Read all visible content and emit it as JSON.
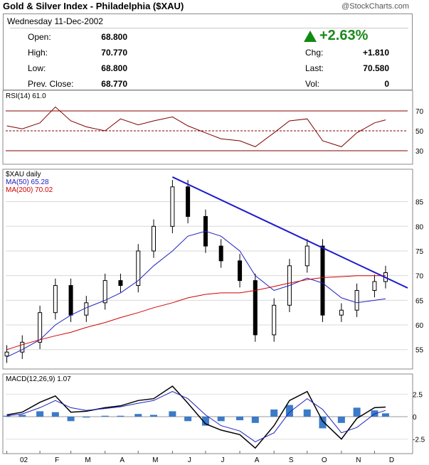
{
  "header": {
    "title": "Gold & Silver Index - Philadelphia ($XAU)",
    "brand": "@StockCharts.com",
    "date": "Wednesday  11-Dec-2002",
    "open_label": "Open:",
    "open": "68.800",
    "high_label": "High:",
    "high": "70.770",
    "low_label": "Low:",
    "low": "68.800",
    "prev_label": "Prev. Close:",
    "prev": "68.770",
    "pct": "+2.63%",
    "chg_label": "Chg:",
    "chg": "+1.810",
    "last_label": "Last:",
    "last": "70.580",
    "vol_label": "Vol:",
    "vol": "0"
  },
  "colors": {
    "up": "#118a11",
    "price": "#000000",
    "ma50": "#2020c0",
    "ma200": "#d00000",
    "trendline": "#1a1ad0",
    "histogram": "#3a7ac8",
    "rsi": "#800000"
  },
  "chart_data": [
    {
      "type": "line",
      "panel": "rsi",
      "title": "RSI(14) 61.0",
      "yticks": [
        30,
        50,
        70
      ],
      "ylim": [
        20,
        80
      ],
      "x": [
        "2002-01-02",
        "2002-01-16",
        "2002-02-01",
        "2002-02-15",
        "2002-03-01",
        "2002-03-15",
        "2002-04-01",
        "2002-04-15",
        "2002-05-01",
        "2002-05-15",
        "2002-06-01",
        "2002-06-15",
        "2002-07-01",
        "2002-07-15",
        "2002-08-01",
        "2002-08-15",
        "2002-09-01",
        "2002-09-15",
        "2002-10-01",
        "2002-10-15",
        "2002-11-01",
        "2002-11-15",
        "2002-12-01",
        "2002-12-11"
      ],
      "series": [
        {
          "values": [
            55,
            52,
            58,
            74,
            60,
            54,
            50,
            62,
            56,
            60,
            64,
            55,
            48,
            42,
            40,
            34,
            48,
            60,
            62,
            40,
            34,
            48,
            58,
            61
          ]
        }
      ]
    },
    {
      "type": "candlestick",
      "panel": "price",
      "title": "$XAU daily",
      "legend": [
        "MA(50) 65.28",
        "MA(200) 70.02"
      ],
      "yticks": [
        55,
        60,
        65,
        70,
        75,
        80,
        85
      ],
      "ylim": [
        51.5,
        91
      ],
      "xlabels": [
        "02",
        "F",
        "M",
        "A",
        "M",
        "J",
        "J",
        "A",
        "S",
        "O",
        "N",
        "D"
      ],
      "x": [
        "2002-01-02",
        "2002-01-16",
        "2002-02-01",
        "2002-02-15",
        "2002-03-01",
        "2002-03-15",
        "2002-04-01",
        "2002-04-15",
        "2002-05-01",
        "2002-05-15",
        "2002-06-01",
        "2002-06-15",
        "2002-07-01",
        "2002-07-15",
        "2002-08-01",
        "2002-08-15",
        "2002-09-01",
        "2002-09-15",
        "2002-10-01",
        "2002-10-15",
        "2002-11-01",
        "2002-11-15",
        "2002-12-01",
        "2002-12-11"
      ],
      "close": [
        54.5,
        56.5,
        62.5,
        68,
        62,
        64.5,
        69,
        68,
        75,
        80,
        88,
        82,
        76,
        73,
        69,
        58,
        64,
        72,
        76,
        62,
        63,
        67,
        68.8,
        70.6
      ],
      "ma50": [
        53.5,
        55,
        57,
        60,
        62,
        63.5,
        65,
        66.5,
        69,
        72,
        75,
        78,
        79,
        78,
        75,
        70,
        67,
        68,
        69.5,
        68.5,
        65.5,
        64.5,
        65,
        65.3
      ],
      "ma200": [
        55,
        56,
        57,
        57.8,
        58.5,
        59.5,
        60.5,
        61.5,
        62.5,
        63.5,
        64.5,
        65.5,
        66.2,
        66.5,
        66.5,
        67,
        67.8,
        68.5,
        69.2,
        69.6,
        69.8,
        70,
        70,
        70
      ],
      "trendline": {
        "from": [
          "2002-06-01",
          90
        ],
        "to": [
          "2002-12-31",
          67.5
        ]
      }
    },
    {
      "type": "line",
      "panel": "macd",
      "title": "MACD(12,26,9) 1.07",
      "yticks": [
        2.5,
        0,
        -2.5
      ],
      "ylim": [
        -3.8,
        3.8
      ],
      "x": [
        "2002-01-02",
        "2002-01-16",
        "2002-02-01",
        "2002-02-15",
        "2002-03-01",
        "2002-03-15",
        "2002-04-01",
        "2002-04-15",
        "2002-05-01",
        "2002-05-15",
        "2002-06-01",
        "2002-06-15",
        "2002-07-01",
        "2002-07-15",
        "2002-08-01",
        "2002-08-15",
        "2002-09-01",
        "2002-09-15",
        "2002-10-01",
        "2002-10-15",
        "2002-11-01",
        "2002-11-15",
        "2002-12-01",
        "2002-12-11"
      ],
      "series": [
        {
          "values": [
            0.2,
            0.5,
            1.6,
            2.3,
            0.5,
            0.6,
            1.0,
            1.2,
            1.8,
            2.0,
            3.4,
            1.5,
            -0.8,
            -1.5,
            -2.0,
            -3.5,
            -1.0,
            1.8,
            2.8,
            -0.5,
            -2.5,
            -0.2,
            1.0,
            1.07
          ],
          "color": "#000000"
        },
        {
          "values": [
            0.1,
            0.3,
            1.0,
            1.8,
            1.0,
            0.7,
            0.9,
            1.1,
            1.5,
            1.8,
            2.8,
            2.0,
            0.2,
            -1.0,
            -1.6,
            -2.8,
            -1.8,
            0.5,
            2.0,
            0.8,
            -1.8,
            -1.2,
            0.3,
            0.7
          ],
          "color": "#2020c0"
        }
      ]
    }
  ]
}
